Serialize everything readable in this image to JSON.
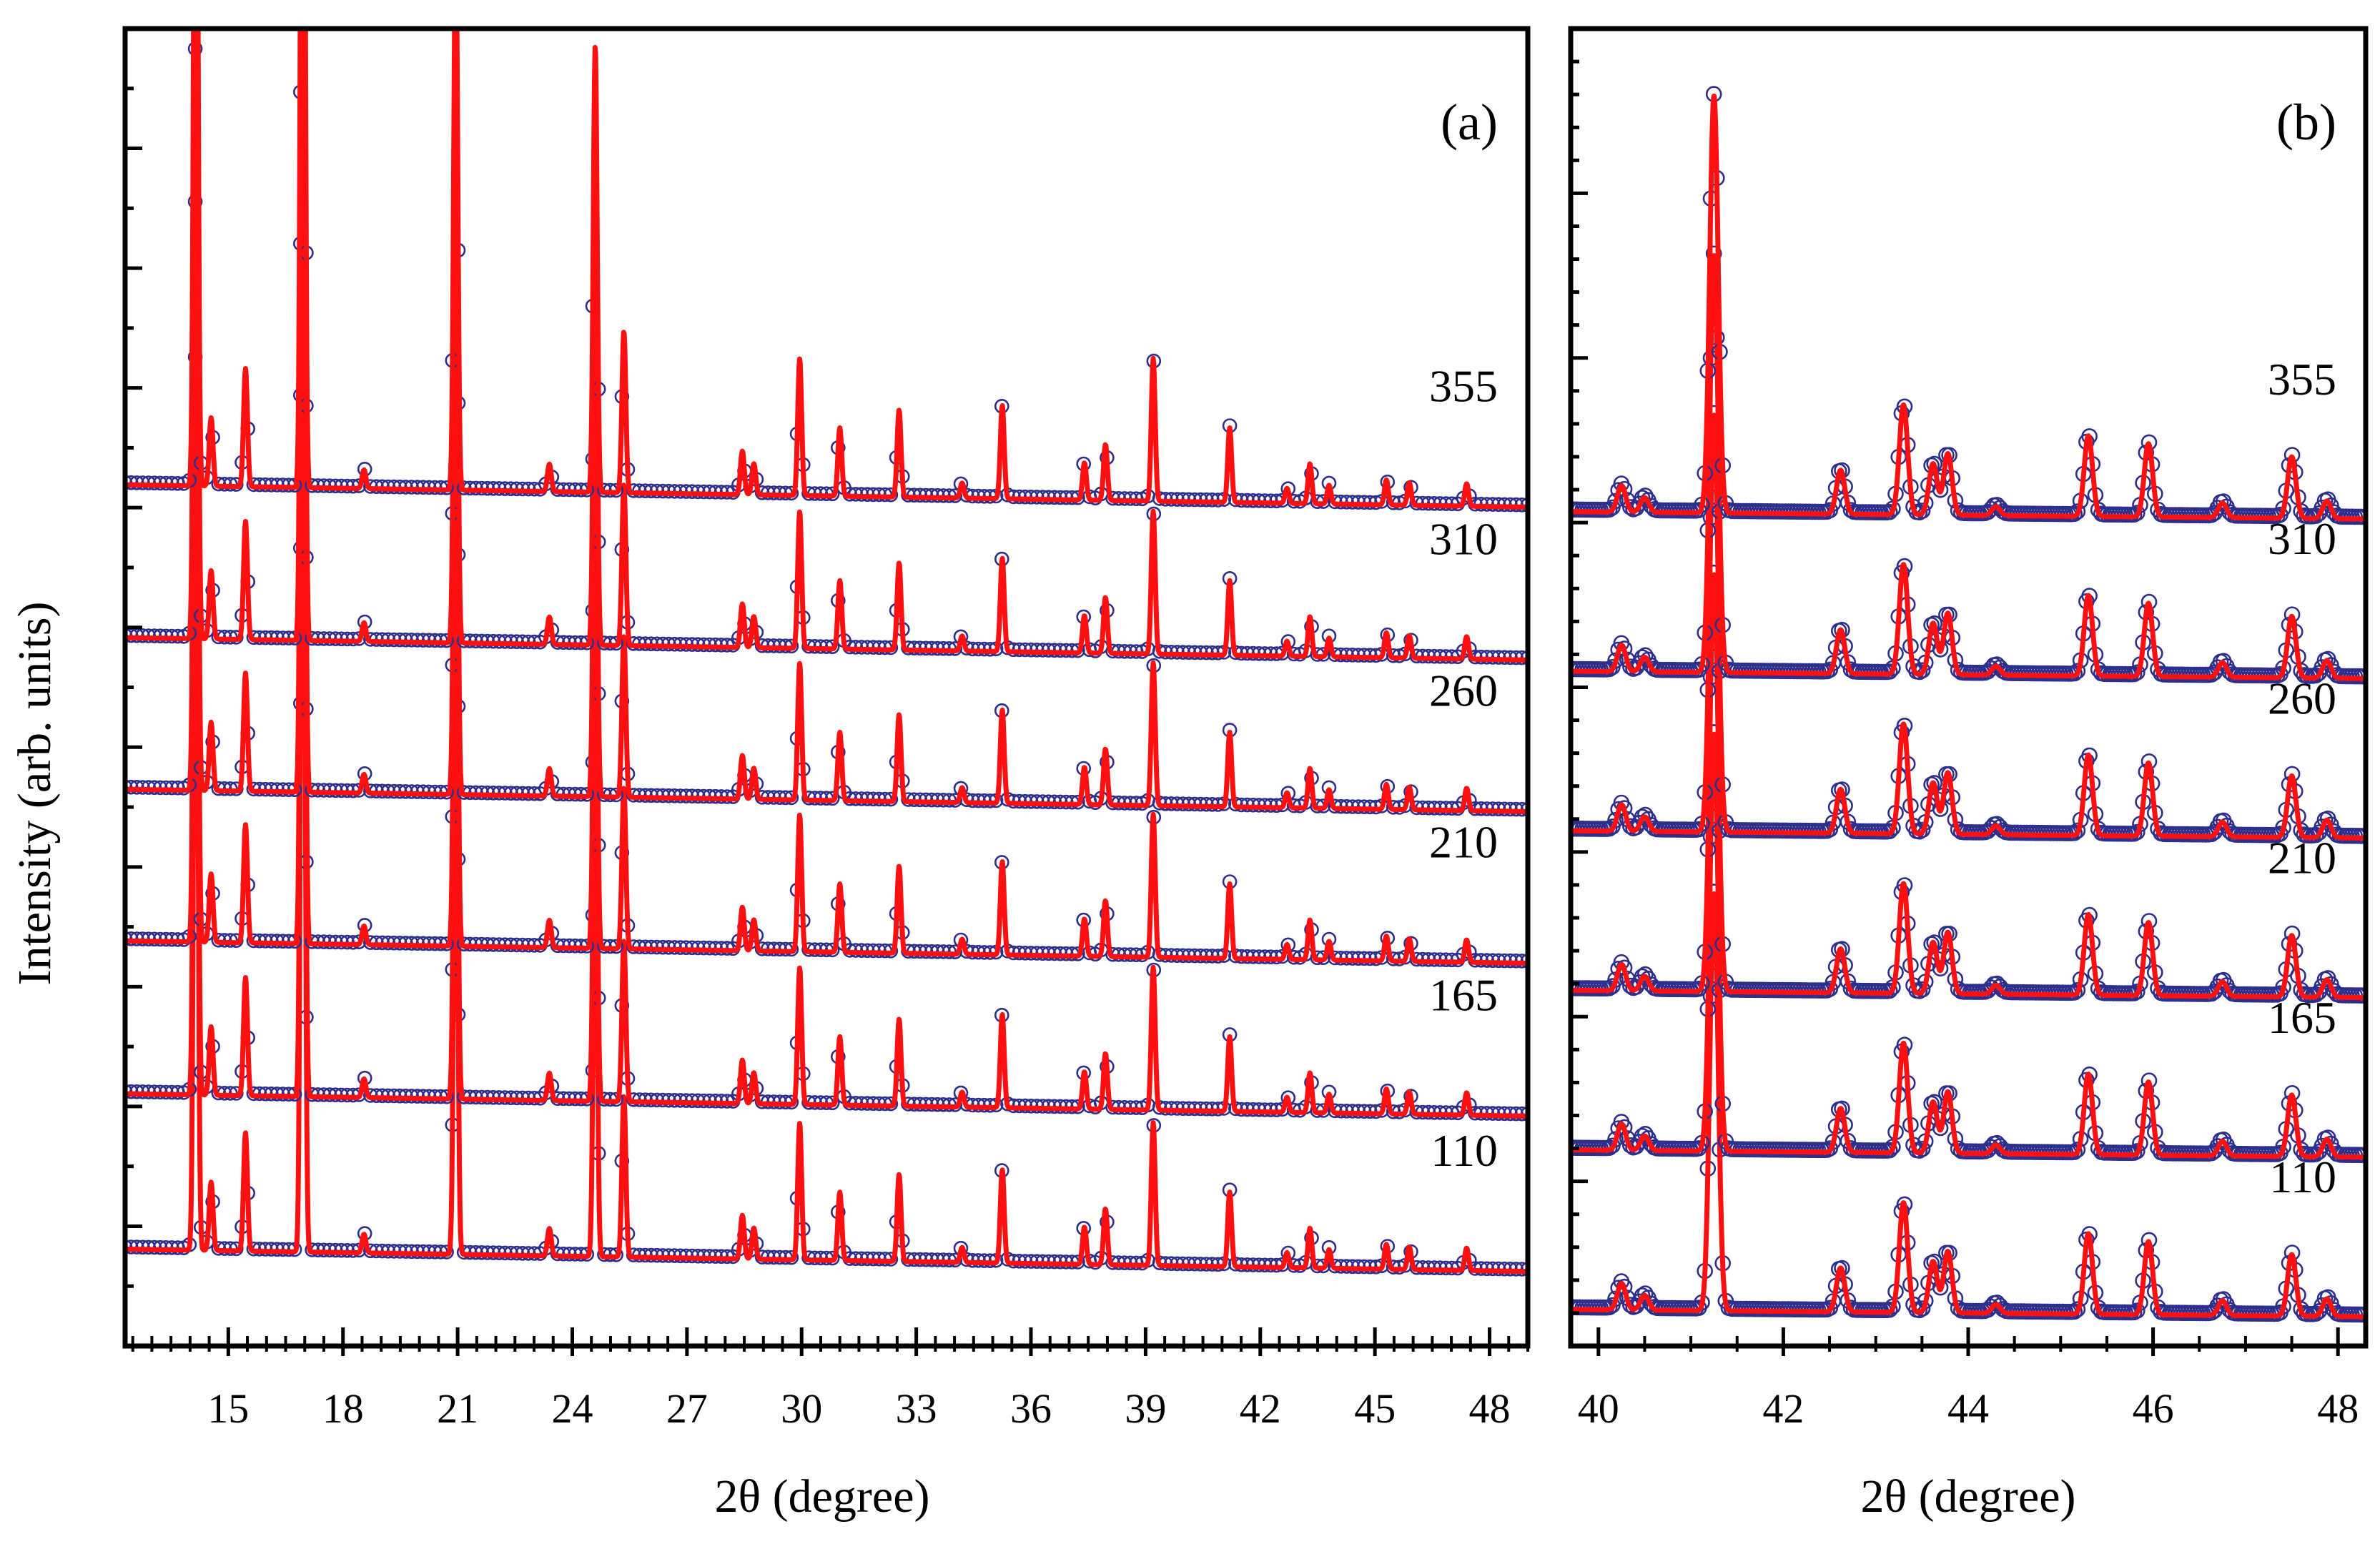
{
  "ylabel": "Intensity (arb. units)",
  "colors": {
    "observed": "#2e2e8c",
    "calculated": "#ff1010",
    "axis": "#000000"
  },
  "chart_data": [
    {
      "type": "line",
      "panel_label": "(a)",
      "xlabel": "2θ (degree)",
      "ylabel": "Intensity (arb. units)",
      "xlim": [
        12.3,
        49
      ],
      "ylim": [
        -0.6,
        10.0
      ],
      "xticks": [
        15,
        18,
        21,
        24,
        27,
        30,
        33,
        36,
        39,
        42,
        45,
        48
      ],
      "xtick_labels": [
        "15",
        "18",
        "21",
        "24",
        "27",
        "30",
        "33",
        "36",
        "39",
        "42",
        "45",
        "48"
      ],
      "grid": false,
      "series": [
        {
          "name": "110",
          "label": "110",
          "offset": 0.0,
          "tilt": 0.18
        },
        {
          "name": "165",
          "label": "165",
          "offset": 1.25,
          "tilt": 0.18
        },
        {
          "name": "210",
          "label": "210",
          "offset": 2.48,
          "tilt": 0.18
        },
        {
          "name": "260",
          "label": "260",
          "offset": 3.7,
          "tilt": 0.18
        },
        {
          "name": "310",
          "label": "310",
          "offset": 4.92,
          "tilt": 0.18
        },
        {
          "name": "355",
          "label": "355",
          "offset": 6.15,
          "tilt": 0.18
        }
      ],
      "peaks": [
        {
          "x": 14.15,
          "h": 7.5
        },
        {
          "x": 14.55,
          "h": 0.55
        },
        {
          "x": 15.45,
          "h": 0.95
        },
        {
          "x": 16.95,
          "h": 9.6
        },
        {
          "x": 18.55,
          "h": 0.15
        },
        {
          "x": 20.95,
          "h": 4.6
        },
        {
          "x": 23.4,
          "h": 0.22
        },
        {
          "x": 24.6,
          "h": 3.6
        },
        {
          "x": 25.35,
          "h": 1.3
        },
        {
          "x": 28.45,
          "h": 0.35
        },
        {
          "x": 28.75,
          "h": 0.25
        },
        {
          "x": 29.95,
          "h": 1.1
        },
        {
          "x": 31.0,
          "h": 0.55
        },
        {
          "x": 32.55,
          "h": 0.7
        },
        {
          "x": 34.2,
          "h": 0.12
        },
        {
          "x": 35.25,
          "h": 0.75
        },
        {
          "x": 37.4,
          "h": 0.3
        },
        {
          "x": 37.95,
          "h": 0.45
        },
        {
          "x": 39.2,
          "h": 1.15
        },
        {
          "x": 41.2,
          "h": 0.6
        },
        {
          "x": 42.7,
          "h": 0.12
        },
        {
          "x": 43.3,
          "h": 0.32
        },
        {
          "x": 43.8,
          "h": 0.15
        },
        {
          "x": 45.3,
          "h": 0.2
        },
        {
          "x": 45.9,
          "h": 0.18
        },
        {
          "x": 47.4,
          "h": 0.18
        }
      ]
    },
    {
      "type": "line",
      "panel_label": "(b)",
      "xlabel": "2θ (degree)",
      "xlim": [
        39.7,
        48.3
      ],
      "ylim": [
        -0.2,
        8.8
      ],
      "xticks": [
        40,
        42,
        44,
        46,
        48
      ],
      "xtick_labels": [
        "40",
        "42",
        "44",
        "46",
        "48"
      ],
      "grid": false,
      "series": [
        {
          "name": "110",
          "label": "110",
          "offset": 0.0,
          "tilt": 0.05
        },
        {
          "name": "165",
          "label": "165",
          "offset": 1.09,
          "tilt": 0.05
        },
        {
          "name": "210",
          "label": "210",
          "offset": 2.18,
          "tilt": 0.05
        },
        {
          "name": "260",
          "label": "260",
          "offset": 3.27,
          "tilt": 0.05
        },
        {
          "name": "310",
          "label": "310",
          "offset": 4.36,
          "tilt": 0.05
        },
        {
          "name": "355",
          "label": "355",
          "offset": 5.45,
          "tilt": 0.05
        }
      ],
      "peaks": [
        {
          "x": 40.25,
          "h": 0.18
        },
        {
          "x": 40.5,
          "h": 0.1
        },
        {
          "x": 41.25,
          "h": 2.85
        },
        {
          "x": 42.62,
          "h": 0.3
        },
        {
          "x": 43.3,
          "h": 0.75
        },
        {
          "x": 43.62,
          "h": 0.35
        },
        {
          "x": 43.78,
          "h": 0.42
        },
        {
          "x": 44.3,
          "h": 0.06
        },
        {
          "x": 45.3,
          "h": 0.55
        },
        {
          "x": 45.95,
          "h": 0.5
        },
        {
          "x": 46.75,
          "h": 0.1
        },
        {
          "x": 47.5,
          "h": 0.42
        },
        {
          "x": 47.88,
          "h": 0.12
        }
      ]
    }
  ]
}
